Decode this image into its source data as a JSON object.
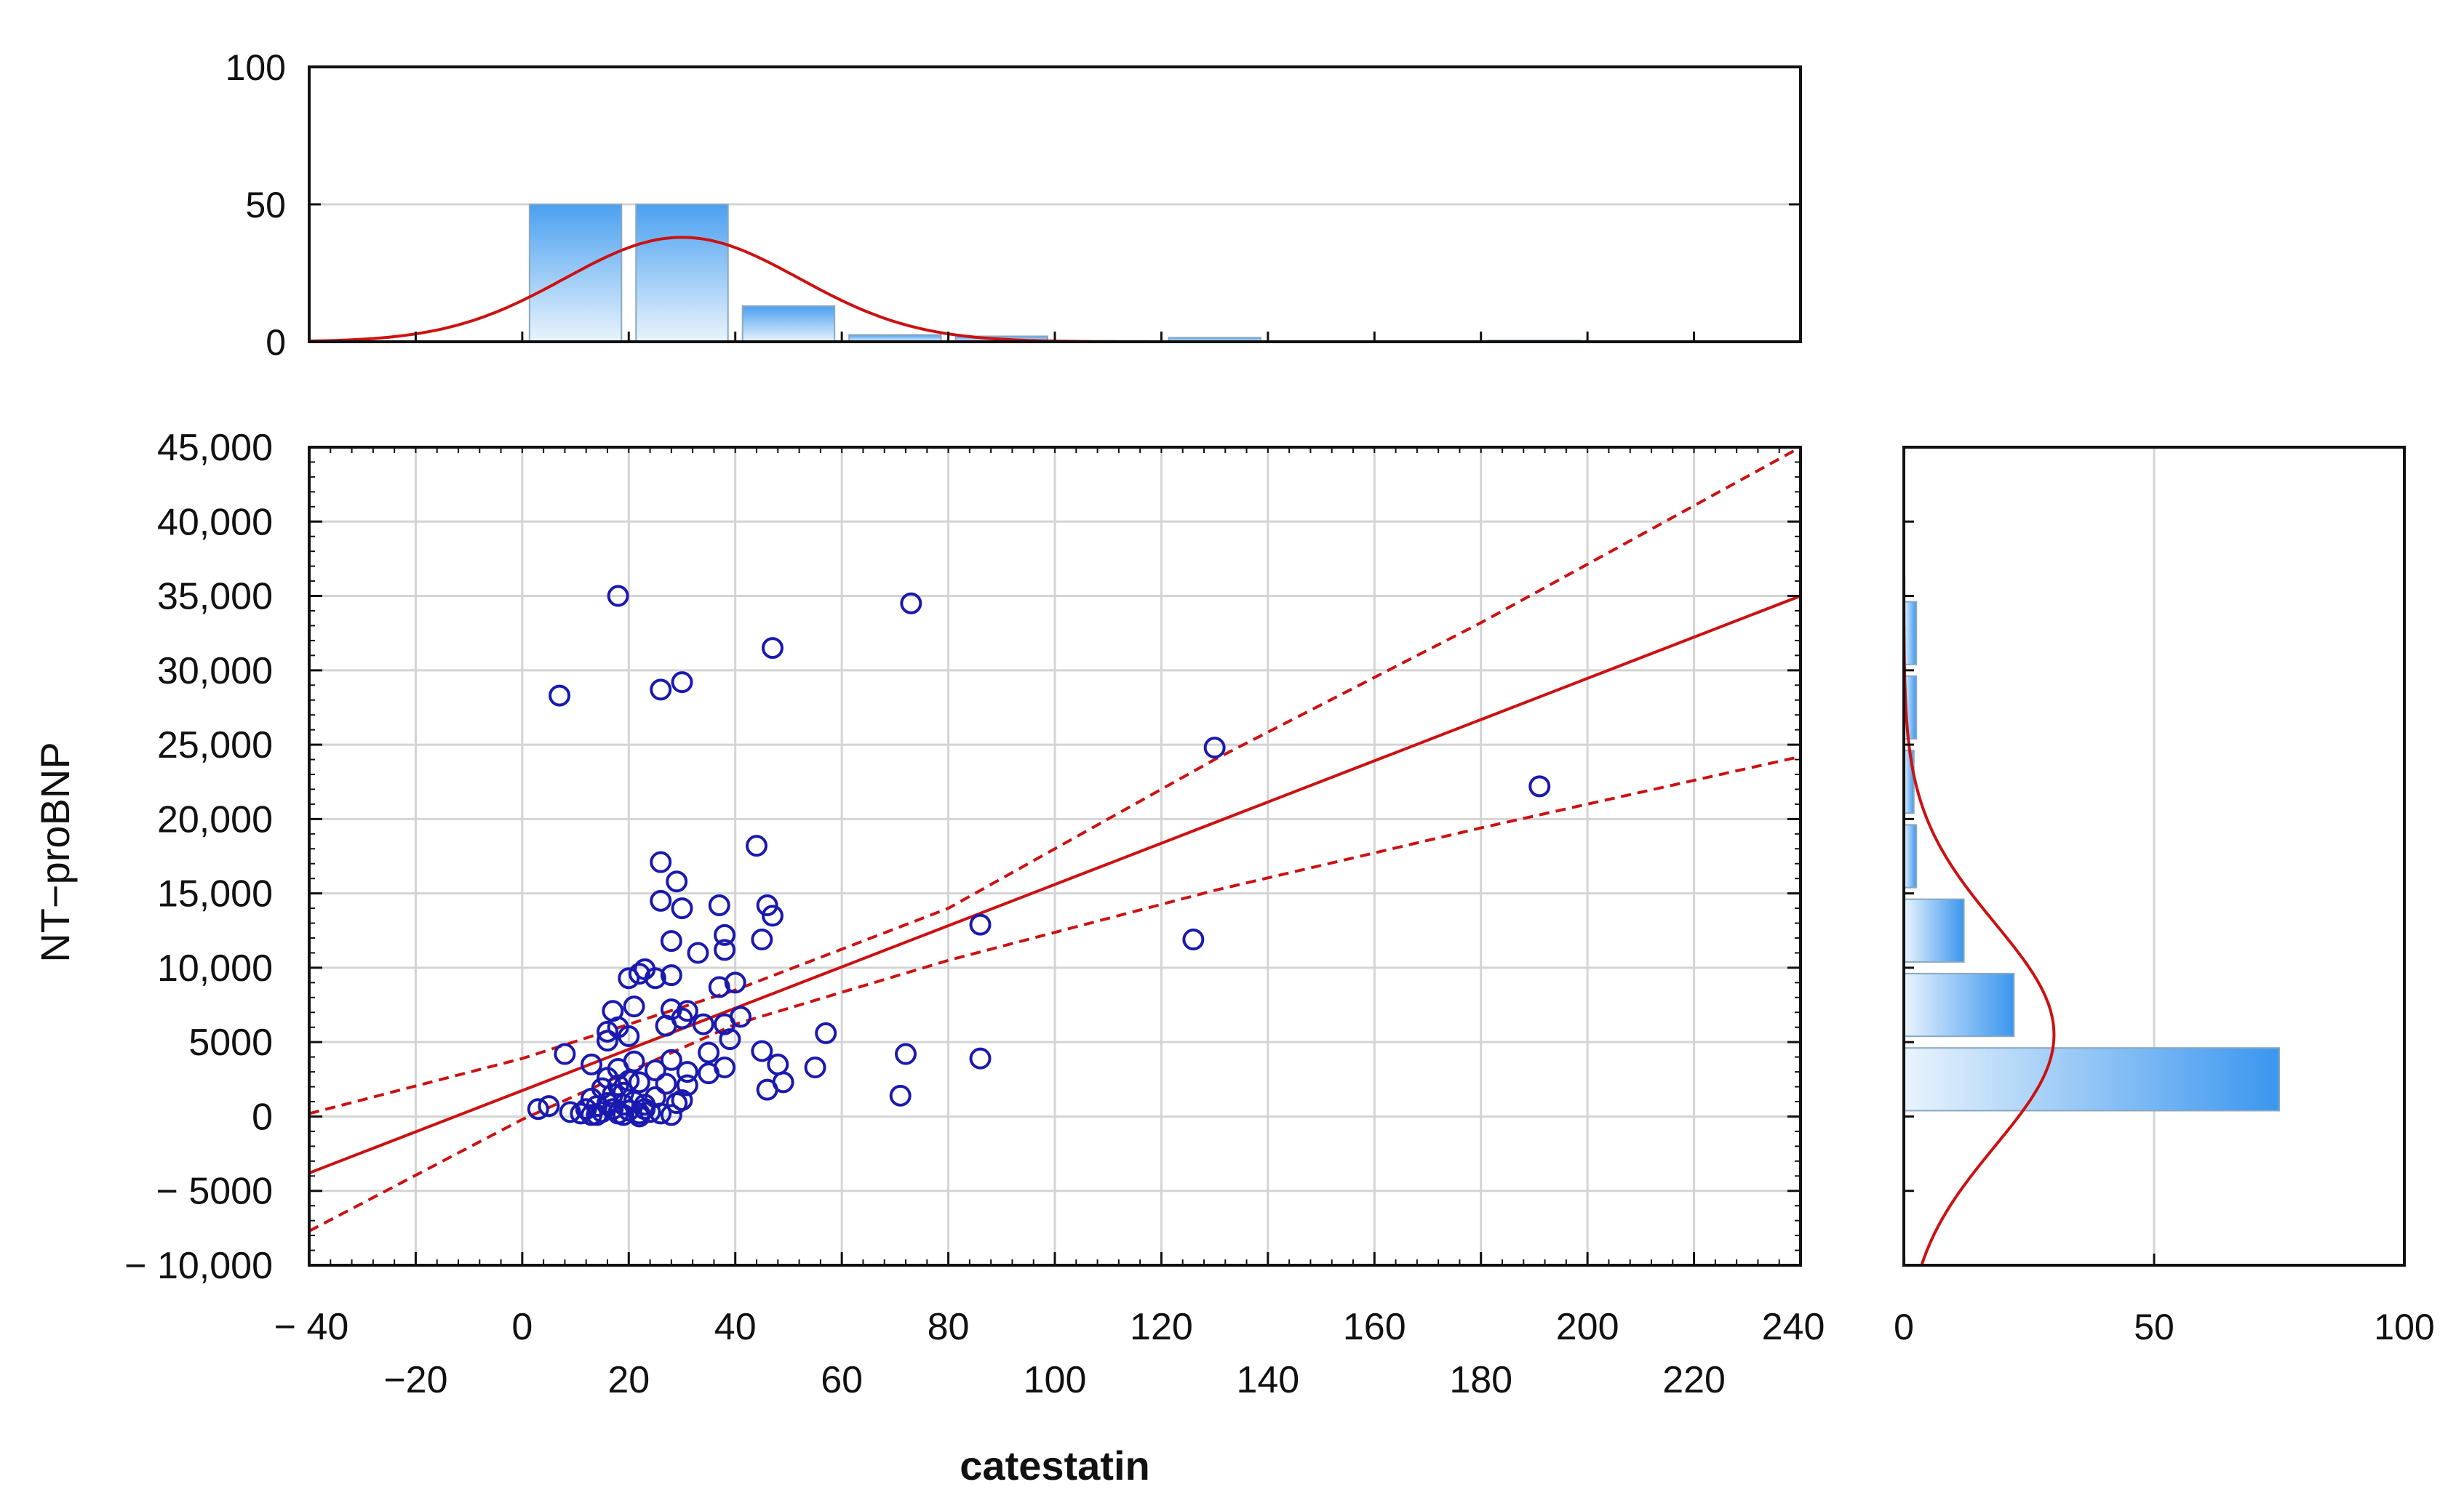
{
  "chart_data": [
    {
      "id": "scatter",
      "type": "scatter",
      "title": "",
      "xlabel": "catestatin",
      "ylabel": "NT−proBNP",
      "xlim": [
        -40,
        240
      ],
      "ylim": [
        -10000,
        45000
      ],
      "x_ticks_upper": [
        "− 40",
        "0",
        "40",
        "80",
        "120",
        "160",
        "200",
        "240"
      ],
      "x_ticks_upper_values": [
        -40,
        0,
        40,
        80,
        120,
        160,
        200,
        240
      ],
      "x_ticks_lower": [
        "−20",
        "20",
        "60",
        "100",
        "140",
        "180",
        "220"
      ],
      "x_ticks_lower_values": [
        -20,
        20,
        60,
        100,
        140,
        180,
        220
      ],
      "y_ticks": [
        "45,000",
        "40,000",
        "35,000",
        "30,000",
        "25,000",
        "20,000",
        "15,000",
        "10,000",
        "5000",
        "0",
        "−  5000",
        "− 10,000"
      ],
      "y_tick_values": [
        45000,
        40000,
        35000,
        30000,
        25000,
        20000,
        15000,
        10000,
        5000,
        0,
        -5000,
        -10000
      ],
      "grid": true,
      "regression": {
        "x": [
          -40,
          240
        ],
        "y": [
          -3800,
          35000
        ],
        "color": "#cc1111"
      },
      "confidence_upper": {
        "x": [
          -40,
          0,
          40,
          80,
          130,
          180,
          240
        ],
        "y": [
          200,
          3900,
          8500,
          14000,
          24000,
          33200,
          45000
        ],
        "color": "#cc1111"
      },
      "confidence_lower": {
        "x": [
          -40,
          0,
          40,
          80,
          130,
          180,
          240
        ],
        "y": [
          -7700,
          -200,
          6200,
          10500,
          15200,
          19400,
          24200
        ],
        "color": "#cc1111"
      },
      "point_color": "#1a1ab0",
      "points": [
        [
          18,
          35000
        ],
        [
          73,
          34500
        ],
        [
          7,
          28300
        ],
        [
          26,
          28700
        ],
        [
          30,
          29200
        ],
        [
          47,
          31500
        ],
        [
          130,
          24800
        ],
        [
          191,
          22200
        ],
        [
          44,
          18200
        ],
        [
          26,
          17100
        ],
        [
          29,
          15800
        ],
        [
          26,
          14500
        ],
        [
          30,
          14000
        ],
        [
          37,
          14200
        ],
        [
          46,
          14200
        ],
        [
          47,
          13500
        ],
        [
          86,
          12900
        ],
        [
          126,
          11900
        ],
        [
          45,
          11900
        ],
        [
          38,
          12200
        ],
        [
          28,
          11800
        ],
        [
          38,
          11200
        ],
        [
          33,
          11000
        ],
        [
          23,
          9900
        ],
        [
          22,
          9600
        ],
        [
          25,
          9300
        ],
        [
          28,
          9500
        ],
        [
          20,
          9300
        ],
        [
          40,
          9000
        ],
        [
          37,
          8700
        ],
        [
          17,
          7100
        ],
        [
          21,
          7400
        ],
        [
          28,
          7200
        ],
        [
          31,
          7100
        ],
        [
          30,
          6600
        ],
        [
          41,
          6700
        ],
        [
          38,
          6200
        ],
        [
          34,
          6200
        ],
        [
          27,
          6100
        ],
        [
          16,
          5700
        ],
        [
          18,
          6000
        ],
        [
          16,
          5100
        ],
        [
          20,
          5400
        ],
        [
          39,
          5200
        ],
        [
          57,
          5600
        ],
        [
          8,
          4200
        ],
        [
          35,
          4300
        ],
        [
          45,
          4400
        ],
        [
          72,
          4200
        ],
        [
          86,
          3900
        ],
        [
          28,
          3800
        ],
        [
          21,
          3700
        ],
        [
          13,
          3500
        ],
        [
          18,
          3200
        ],
        [
          38,
          3300
        ],
        [
          25,
          3100
        ],
        [
          31,
          3000
        ],
        [
          35,
          2900
        ],
        [
          48,
          3500
        ],
        [
          55,
          3300
        ],
        [
          16,
          2600
        ],
        [
          22,
          2300
        ],
        [
          27,
          2200
        ],
        [
          31,
          2100
        ],
        [
          49,
          2300
        ],
        [
          46,
          1800
        ],
        [
          71,
          1400
        ],
        [
          30,
          1100
        ],
        [
          29,
          900
        ],
        [
          23,
          800
        ],
        [
          25,
          1300
        ],
        [
          19,
          1600
        ],
        [
          3,
          500
        ],
        [
          5,
          700
        ],
        [
          9,
          300
        ],
        [
          11,
          200
        ],
        [
          12,
          500
        ],
        [
          13,
          100
        ],
        [
          14,
          700
        ],
        [
          15,
          300
        ],
        [
          16,
          900
        ],
        [
          17,
          500
        ],
        [
          17,
          1500
        ],
        [
          18,
          200
        ],
        [
          19,
          800
        ],
        [
          20,
          400
        ],
        [
          21,
          1000
        ],
        [
          22,
          200
        ],
        [
          23,
          500
        ],
        [
          24,
          300
        ],
        [
          18,
          2100
        ],
        [
          15,
          1900
        ],
        [
          20,
          2400
        ],
        [
          13,
          1200
        ],
        [
          26,
          200
        ],
        [
          28,
          100
        ],
        [
          14,
          100
        ],
        [
          19,
          100
        ],
        [
          22,
          0
        ]
      ]
    },
    {
      "id": "top-histogram",
      "type": "bar",
      "orientation": "vertical",
      "ylim": [
        0,
        100
      ],
      "y_ticks": [
        "100",
        "50",
        "0"
      ],
      "y_tick_values": [
        100,
        50,
        0
      ],
      "bins": [
        [
          0,
          20
        ],
        [
          20,
          40
        ],
        [
          40,
          60
        ],
        [
          60,
          80
        ],
        [
          80,
          100
        ],
        [
          120,
          140
        ],
        [
          180,
          200
        ]
      ],
      "values": [
        50,
        50,
        13,
        2.5,
        2,
        1.5,
        0.5
      ],
      "normal_curve": {
        "mean": 30,
        "sd": 22,
        "peak": 38
      },
      "curve_color": "#cc1111"
    },
    {
      "id": "right-histogram",
      "type": "bar",
      "orientation": "horizontal",
      "xlim": [
        0,
        100
      ],
      "x_ticks": [
        "0",
        "50",
        "100"
      ],
      "x_tick_values": [
        0,
        50,
        100
      ],
      "bins": [
        [
          0,
          5000
        ],
        [
          5000,
          10000
        ],
        [
          10000,
          15000
        ],
        [
          15000,
          20000
        ],
        [
          20000,
          25000
        ],
        [
          25000,
          30000
        ],
        [
          30000,
          35000
        ]
      ],
      "values": [
        75,
        22,
        12,
        2.5,
        2,
        2.5,
        2.5
      ],
      "normal_curve": {
        "mean": 5500,
        "sd": 7500,
        "peak": 30
      },
      "curve_color": "#cc1111"
    }
  ]
}
